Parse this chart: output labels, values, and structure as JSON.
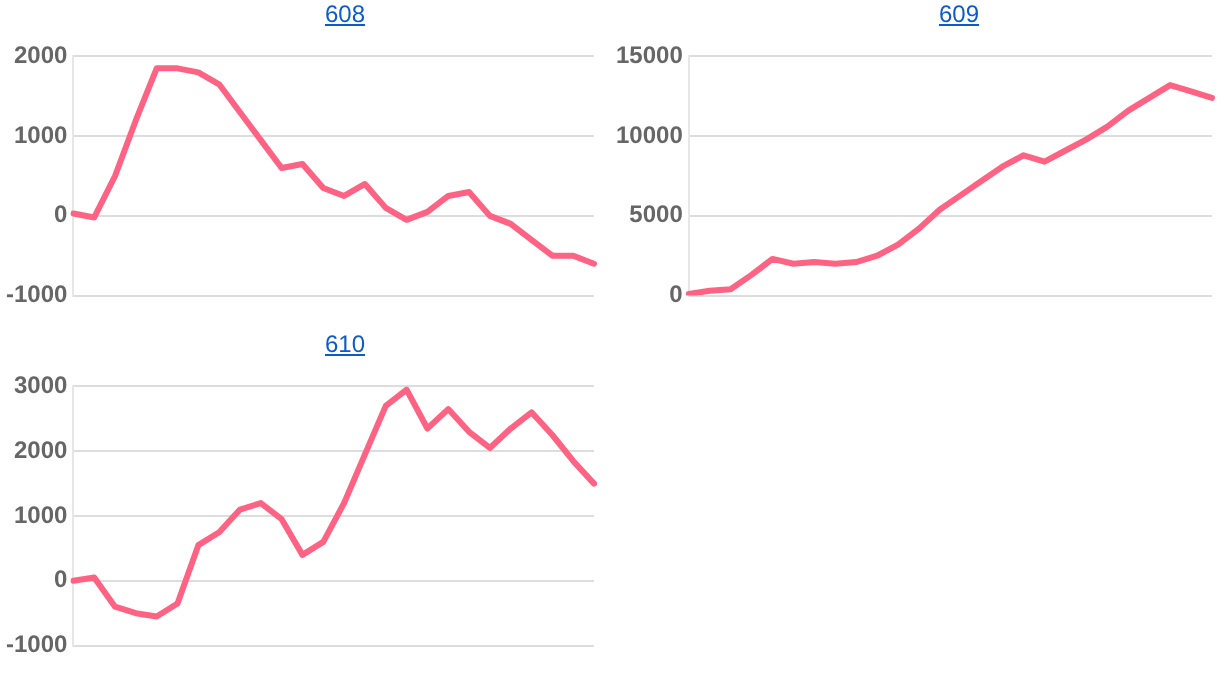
{
  "chart_data": [
    {
      "type": "line",
      "title": "608",
      "categories": [
        null,
        null,
        null,
        null,
        null,
        null,
        null,
        null,
        null,
        null,
        null,
        null,
        null,
        null,
        null,
        null,
        null,
        null,
        null,
        null,
        null,
        null,
        null,
        null,
        null,
        null
      ],
      "series": [
        {
          "color": "#ff6384",
          "values": [
            30,
            -20,
            500,
            1200,
            1850,
            1850,
            1800,
            1650,
            1300,
            950,
            600,
            650,
            350,
            250,
            400,
            100,
            -50,
            50,
            250,
            300,
            0,
            -100,
            -300,
            -500,
            -500,
            -600
          ]
        }
      ],
      "ylim": [
        -1000,
        2000
      ],
      "yticks": [
        -1000,
        0,
        1000,
        2000
      ],
      "grid": "y",
      "legend": false,
      "tick_labels": "y",
      "marker": "none",
      "line_style": "solid"
    },
    {
      "type": "line",
      "title": "609",
      "categories": [
        null,
        null,
        null,
        null,
        null,
        null,
        null,
        null,
        null,
        null,
        null,
        null,
        null,
        null,
        null,
        null,
        null,
        null,
        null,
        null,
        null,
        null,
        null,
        null,
        null,
        null
      ],
      "series": [
        {
          "color": "#ff6384",
          "values": [
            100,
            300,
            400,
            1300,
            2300,
            2000,
            2100,
            2000,
            2100,
            2500,
            3200,
            4200,
            5400,
            6300,
            7200,
            8100,
            8800,
            8400,
            9100,
            9800,
            10600,
            11600,
            12400,
            13200,
            12800,
            12400
          ]
        }
      ],
      "ylim": [
        0,
        15000
      ],
      "yticks": [
        0,
        5000,
        10000,
        15000
      ],
      "grid": "y",
      "legend": false,
      "tick_labels": "y",
      "marker": "none",
      "line_style": "solid"
    },
    {
      "type": "line",
      "title": "610",
      "categories": [
        null,
        null,
        null,
        null,
        null,
        null,
        null,
        null,
        null,
        null,
        null,
        null,
        null,
        null,
        null,
        null,
        null,
        null,
        null,
        null,
        null,
        null,
        null,
        null,
        null,
        null
      ],
      "series": [
        {
          "color": "#ff6384",
          "values": [
            0,
            50,
            -400,
            -500,
            -550,
            -350,
            550,
            750,
            1100,
            1200,
            950,
            400,
            600,
            1200,
            1950,
            2700,
            2950,
            2350,
            2650,
            2300,
            2050,
            2350,
            2600,
            2250,
            1850,
            1500
          ]
        }
      ],
      "ylim": [
        -1000,
        3000
      ],
      "yticks": [
        -1000,
        0,
        1000,
        2000,
        3000
      ],
      "grid": "y",
      "legend": false,
      "tick_labels": "y",
      "marker": "none",
      "line_style": "solid"
    }
  ]
}
